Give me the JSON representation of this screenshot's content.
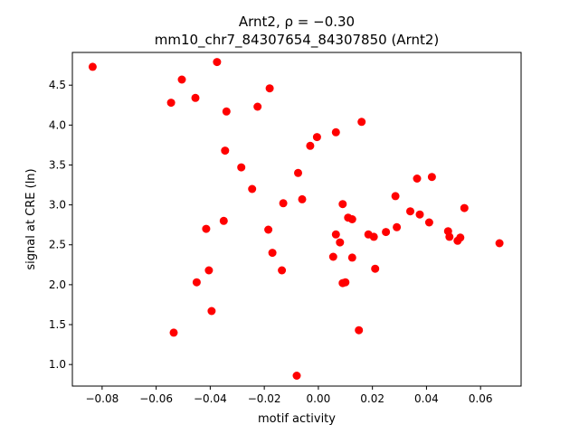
{
  "chart_data": {
    "type": "scatter",
    "title_line1": "Arnt2, ρ = −0.30",
    "title_line2": "mm10_chr7_84307654_84307850 (Arnt2)",
    "xlabel": "motif activity",
    "ylabel": "signal at CRE (ln)",
    "xlim": [
      -0.091,
      0.075
    ],
    "ylim": [
      0.73,
      4.91
    ],
    "xticks": [
      -0.08,
      -0.06,
      -0.04,
      -0.02,
      0.0,
      0.02,
      0.04,
      0.06
    ],
    "xtick_labels": [
      "−0.08",
      "−0.06",
      "−0.04",
      "−0.02",
      "0.00",
      "0.02",
      "0.04",
      "0.06"
    ],
    "yticks": [
      1.0,
      1.5,
      2.0,
      2.5,
      3.0,
      3.5,
      4.0,
      4.5
    ],
    "ytick_labels": [
      "1.0",
      "1.5",
      "2.0",
      "2.5",
      "3.0",
      "3.5",
      "4.0",
      "4.5"
    ],
    "grid": false,
    "marker_color": "#ff0000",
    "points": [
      {
        "x": -0.0835,
        "y": 4.73
      },
      {
        "x": -0.0505,
        "y": 4.57
      },
      {
        "x": -0.0375,
        "y": 4.79
      },
      {
        "x": -0.0545,
        "y": 4.28
      },
      {
        "x": -0.0455,
        "y": 4.34
      },
      {
        "x": -0.018,
        "y": 4.46
      },
      {
        "x": -0.034,
        "y": 4.17
      },
      {
        "x": -0.0225,
        "y": 4.23
      },
      {
        "x": 0.016,
        "y": 4.04
      },
      {
        "x": 0.0065,
        "y": 3.91
      },
      {
        "x": -0.0005,
        "y": 3.85
      },
      {
        "x": -0.003,
        "y": 3.74
      },
      {
        "x": -0.0345,
        "y": 3.68
      },
      {
        "x": -0.0285,
        "y": 3.47
      },
      {
        "x": -0.0075,
        "y": 3.4
      },
      {
        "x": 0.0365,
        "y": 3.33
      },
      {
        "x": 0.042,
        "y": 3.35
      },
      {
        "x": -0.0245,
        "y": 3.2
      },
      {
        "x": -0.006,
        "y": 3.07
      },
      {
        "x": 0.0285,
        "y": 3.11
      },
      {
        "x": -0.013,
        "y": 3.02
      },
      {
        "x": 0.009,
        "y": 3.01
      },
      {
        "x": 0.054,
        "y": 2.96
      },
      {
        "x": 0.034,
        "y": 2.92
      },
      {
        "x": 0.0375,
        "y": 2.88
      },
      {
        "x": 0.011,
        "y": 2.84
      },
      {
        "x": 0.0125,
        "y": 2.82
      },
      {
        "x": -0.035,
        "y": 2.8
      },
      {
        "x": 0.041,
        "y": 2.78
      },
      {
        "x": 0.029,
        "y": 2.72
      },
      {
        "x": -0.0415,
        "y": 2.7
      },
      {
        "x": -0.0185,
        "y": 2.69
      },
      {
        "x": 0.025,
        "y": 2.66
      },
      {
        "x": 0.048,
        "y": 2.67
      },
      {
        "x": 0.0065,
        "y": 2.63
      },
      {
        "x": 0.0185,
        "y": 2.63
      },
      {
        "x": 0.0205,
        "y": 2.6
      },
      {
        "x": 0.0485,
        "y": 2.6
      },
      {
        "x": 0.0525,
        "y": 2.59
      },
      {
        "x": 0.0515,
        "y": 2.55
      },
      {
        "x": 0.008,
        "y": 2.53
      },
      {
        "x": 0.067,
        "y": 2.52
      },
      {
        "x": -0.017,
        "y": 2.4
      },
      {
        "x": 0.0055,
        "y": 2.35
      },
      {
        "x": 0.0125,
        "y": 2.34
      },
      {
        "x": 0.021,
        "y": 2.2
      },
      {
        "x": -0.0405,
        "y": 2.18
      },
      {
        "x": -0.0135,
        "y": 2.18
      },
      {
        "x": -0.045,
        "y": 2.03
      },
      {
        "x": 0.009,
        "y": 2.02
      },
      {
        "x": 0.01,
        "y": 2.03
      },
      {
        "x": -0.0395,
        "y": 1.67
      },
      {
        "x": 0.015,
        "y": 1.43
      },
      {
        "x": -0.0535,
        "y": 1.4
      },
      {
        "x": -0.008,
        "y": 0.86
      }
    ]
  }
}
